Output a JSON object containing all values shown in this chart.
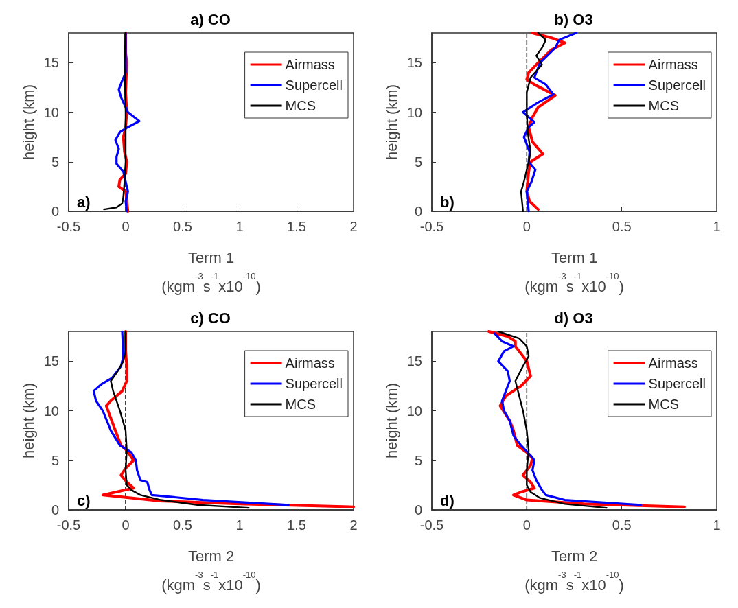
{
  "chart_data": [
    {
      "type": "line",
      "title": "a) CO",
      "xlabel": "Term 1\n(kgm$^{-3}$s$^{-1}$x10$^{-10}$)",
      "ylabel": "height (km)",
      "xlim": [
        -0.5,
        2
      ],
      "xticks": [
        -0.5,
        0,
        0.5,
        1,
        1.5,
        2
      ],
      "ylim": [
        0,
        18
      ],
      "yticks": [
        0,
        5,
        10,
        15
      ],
      "grid": false,
      "legend": "top right",
      "annotations": [
        "a)"
      ],
      "ref_lines": [
        {
          "axis": "x",
          "value": 0,
          "color": "#000000",
          "line_style": "dashed"
        }
      ],
      "series": [
        {
          "name": "Airmass",
          "color": "#ff0000",
          "x": [
            0.02,
            0.01,
            0,
            -0.06,
            -0.05,
            0,
            0.01,
            -0.01,
            -0.02,
            0,
            0.01,
            0,
            0.01,
            0,
            0
          ],
          "values": [
            0,
            1,
            2,
            2.5,
            3.2,
            3.8,
            5,
            6,
            7.5,
            8.5,
            10,
            12,
            15,
            16,
            18
          ]
        },
        {
          "name": "Supercell",
          "color": "#0000ff",
          "x": [
            0.01,
            0,
            0.02,
            0,
            -0.02,
            -0.08,
            -0.08,
            -0.06,
            -0.09,
            -0.05,
            0.02,
            0.12,
            0.02,
            -0.04,
            -0.06,
            -0.03,
            0,
            0,
            0
          ],
          "values": [
            0,
            1,
            2,
            3,
            4,
            4.8,
            5.5,
            6.3,
            7.2,
            8,
            8.5,
            9.1,
            10,
            11.5,
            12.3,
            13.2,
            14,
            16,
            18
          ]
        },
        {
          "name": "MCS",
          "color": "#000000",
          "x": [
            -0.19,
            -0.08,
            -0.03,
            -0.02,
            -0.01,
            0,
            0,
            -0.01,
            0
          ],
          "values": [
            0.2,
            0.4,
            0.8,
            1.5,
            3,
            5,
            10,
            15,
            18
          ]
        }
      ]
    },
    {
      "type": "line",
      "title": "b) O3",
      "xlabel": "Term 1\n(kgm$^{-3}$s$^{-1}$x10$^{-10}$)",
      "ylabel": "height (km)",
      "xlim": [
        -0.5,
        1
      ],
      "xticks": [
        -0.5,
        0,
        0.5,
        1
      ],
      "ylim": [
        0,
        18
      ],
      "yticks": [
        0,
        5,
        10,
        15
      ],
      "grid": false,
      "legend": "top right",
      "annotations": [
        "b)"
      ],
      "ref_lines": [
        {
          "axis": "x",
          "value": 0,
          "color": "#000000",
          "line_style": "dashed"
        }
      ],
      "series": [
        {
          "name": "Airmass",
          "color": "#ff0000",
          "x": [
            0.06,
            0.015,
            0,
            0.01,
            0.02,
            0.085,
            0.03,
            0.01,
            0.03,
            0.06,
            0.15,
            0.04,
            0,
            0.01,
            0.06,
            0.13,
            0.2,
            0.13,
            0.03
          ],
          "values": [
            0.2,
            1,
            2,
            4,
            5,
            5.8,
            7,
            8.5,
            9.5,
            10.5,
            11.7,
            12.8,
            13.3,
            14,
            15,
            16.3,
            17,
            17.5,
            18
          ]
        },
        {
          "name": "Supercell",
          "color": "#0000ff",
          "x": [
            0.01,
            0,
            0.025,
            0.045,
            0.01,
            0.015,
            -0.015,
            0.01,
            0.04,
            0.01,
            -0.02,
            0.06,
            0.14,
            0.1,
            0.04,
            0.07,
            0.15,
            0.17,
            0.26
          ],
          "values": [
            0,
            2,
            3,
            4.2,
            5,
            6,
            7.5,
            8.5,
            9,
            9.5,
            10,
            11,
            11.8,
            12.8,
            13.5,
            15,
            16.5,
            17.3,
            18
          ]
        },
        {
          "name": "MCS",
          "color": "#000000",
          "x": [
            -0.02,
            -0.03,
            -0.015,
            0.01,
            0.02,
            0.005,
            0,
            0,
            0.02,
            0.08,
            0.05,
            0.08,
            0.1,
            0.06
          ],
          "values": [
            0,
            2,
            3,
            5,
            6,
            8,
            10,
            12,
            13.5,
            14.8,
            15.7,
            16.5,
            17.3,
            18
          ]
        }
      ]
    },
    {
      "type": "line",
      "title": "c) CO",
      "xlabel": "Term 2\n(kgm$^{-3}$s$^{-1}$x10$^{-10}$)",
      "ylabel": "height (km)",
      "xlim": [
        -0.5,
        2
      ],
      "xticks": [
        -0.5,
        0,
        0.5,
        1,
        1.5,
        2
      ],
      "ylim": [
        0,
        18
      ],
      "yticks": [
        0,
        5,
        10,
        15
      ],
      "grid": false,
      "legend": "top right",
      "annotations": [
        "c)"
      ],
      "ref_lines": [
        {
          "axis": "x",
          "value": 0,
          "color": "#000000",
          "line_style": "dashed"
        }
      ],
      "series": [
        {
          "name": "Airmass",
          "color": "#ff0000",
          "x": [
            2,
            1,
            0.3,
            -0.2,
            0.07,
            0.01,
            -0.04,
            0,
            0.07,
            0.01,
            -0.04,
            -0.09,
            -0.17,
            -0.13,
            -0.03,
            0.01,
            0.01,
            0,
            0
          ],
          "values": [
            0.3,
            0.6,
            0.9,
            1.5,
            2.2,
            2.8,
            3.5,
            4.2,
            5,
            6,
            6.5,
            8,
            10.5,
            11,
            12,
            13,
            14.5,
            16,
            18
          ]
        },
        {
          "name": "Supercell",
          "color": "#0000ff",
          "x": [
            1.43,
            0.68,
            0.23,
            0.21,
            0.19,
            0.13,
            0.1,
            0.09,
            0.05,
            -0.05,
            -0.13,
            -0.2,
            -0.26,
            -0.28,
            -0.21,
            -0.12,
            -0.04,
            -0.02,
            -0.03
          ],
          "values": [
            0.5,
            1,
            1.5,
            2,
            2.8,
            3,
            4,
            5,
            5.8,
            6.5,
            8,
            10,
            11,
            12,
            12.7,
            13.3,
            14.5,
            15.5,
            18
          ]
        },
        {
          "name": "MCS",
          "color": "#000000",
          "x": [
            1.08,
            0.63,
            0.31,
            0.13,
            0.05,
            0.01,
            0,
            0.01,
            0,
            -0.05,
            -0.11,
            -0.13,
            -0.07,
            -0.02,
            0,
            0
          ],
          "values": [
            0.2,
            0.5,
            1,
            1.5,
            2,
            2.5,
            4,
            6,
            8,
            10,
            12,
            13,
            14,
            15,
            16,
            18
          ]
        }
      ]
    },
    {
      "type": "line",
      "title": "d) O3",
      "xlabel": "Term 2\n(kgm$^{-3}$s$^{-1}$x10$^{-10}$)",
      "ylabel": "height (km)",
      "xlim": [
        -0.5,
        1
      ],
      "xticks": [
        -0.5,
        0,
        0.5,
        1
      ],
      "ylim": [
        0,
        18
      ],
      "yticks": [
        0,
        5,
        10,
        15
      ],
      "grid": false,
      "legend": "top right",
      "annotations": [
        "d)"
      ],
      "ref_lines": [
        {
          "axis": "x",
          "value": 0,
          "color": "#000000",
          "line_style": "dashed"
        }
      ],
      "series": [
        {
          "name": "Airmass",
          "color": "#ff0000",
          "x": [
            0.83,
            0.3,
            0,
            -0.07,
            -0.03,
            0.04,
            0.02,
            -0.02,
            0.02,
            0.03,
            0,
            -0.05,
            -0.07,
            -0.09,
            -0.14,
            -0.11,
            -0.03,
            0.02,
            0,
            -0.06,
            -0.06,
            -0.1,
            -0.2
          ],
          "values": [
            0.3,
            0.6,
            1,
            1.5,
            1.8,
            2.2,
            2.8,
            3.5,
            4.5,
            5.2,
            5.8,
            6.5,
            8,
            9,
            10.5,
            11.5,
            12.5,
            13.5,
            15,
            16.5,
            17,
            17.5,
            18
          ]
        },
        {
          "name": "Supercell",
          "color": "#0000ff",
          "x": [
            0.6,
            0.2,
            0.1,
            0.08,
            0.05,
            0.03,
            0.04,
            0.02,
            -0.03,
            -0.07,
            -0.09,
            -0.12,
            -0.13,
            -0.11,
            -0.09,
            -0.1,
            -0.15,
            -0.12,
            -0.07,
            -0.13,
            -0.17
          ],
          "values": [
            0.5,
            1,
            1.5,
            2,
            3,
            4,
            5,
            5.5,
            6.5,
            7.5,
            9,
            10,
            11,
            12,
            13,
            14,
            15,
            16,
            16.5,
            17,
            17.8
          ]
        },
        {
          "name": "MCS",
          "color": "#000000",
          "x": [
            0.42,
            0.2,
            0.07,
            0.02,
            0,
            0,
            0.01,
            0,
            -0.02,
            -0.04,
            -0.06,
            -0.02,
            0.01,
            0,
            -0.04,
            -0.15
          ],
          "values": [
            0.2,
            0.6,
            1.2,
            1.8,
            2.5,
            4,
            6,
            8,
            10,
            11.5,
            13,
            14.5,
            15.5,
            16.5,
            17.3,
            18
          ]
        }
      ]
    }
  ]
}
